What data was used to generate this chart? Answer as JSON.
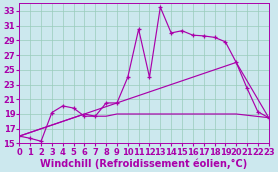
{
  "background_color": "#cce8ee",
  "grid_color": "#99ccbb",
  "line_color": "#aa00aa",
  "xlabel": "Windchill (Refroidissement éolien,°C)",
  "xlabel_fontsize": 7,
  "tick_fontsize": 6,
  "xlim": [
    0,
    23
  ],
  "ylim": [
    15,
    34
  ],
  "yticks": [
    15,
    17,
    19,
    21,
    23,
    25,
    27,
    29,
    31,
    33
  ],
  "xticks": [
    0,
    1,
    2,
    3,
    4,
    5,
    6,
    7,
    8,
    9,
    10,
    11,
    12,
    13,
    14,
    15,
    16,
    17,
    18,
    19,
    20,
    21,
    22,
    23
  ],
  "line1_x": [
    0,
    1,
    2,
    3,
    4,
    5,
    6,
    7,
    8,
    9,
    10,
    11,
    12,
    13,
    14,
    15,
    16,
    17,
    18,
    19,
    20,
    21,
    22,
    23
  ],
  "line1_y": [
    16,
    15.7,
    15.3,
    19.2,
    20.1,
    19.8,
    18.7,
    18.7,
    20.5,
    20.5,
    24,
    30.5,
    24,
    33.5,
    30,
    30.3,
    29.7,
    29.6,
    29.4,
    28.8,
    26,
    22.5,
    19.3,
    18.5
  ],
  "line2_x": [
    0,
    20,
    23
  ],
  "line2_y": [
    16,
    26,
    18.5
  ],
  "line3_x": [
    0,
    6,
    7,
    8,
    9,
    10,
    11,
    12,
    13,
    14,
    19,
    20,
    23
  ],
  "line3_y": [
    16,
    19,
    18.7,
    18.7,
    19,
    19,
    19,
    19,
    19,
    19,
    19,
    19,
    18.5
  ]
}
